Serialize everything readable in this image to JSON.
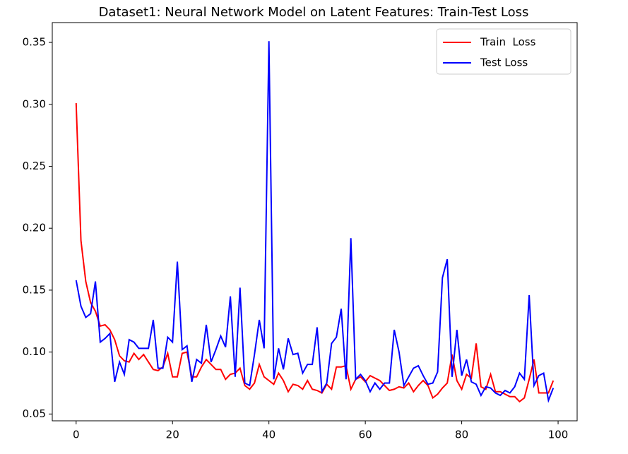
{
  "chart_data": {
    "type": "line",
    "title": "Dataset1: Neural Network Model on Latent Features: Train-Test Loss",
    "x": [
      0,
      1,
      2,
      3,
      4,
      5,
      6,
      7,
      8,
      9,
      10,
      11,
      12,
      13,
      14,
      15,
      16,
      17,
      18,
      19,
      20,
      21,
      22,
      23,
      24,
      25,
      26,
      27,
      28,
      29,
      30,
      31,
      32,
      33,
      34,
      35,
      36,
      37,
      38,
      39,
      40,
      41,
      42,
      43,
      44,
      45,
      46,
      47,
      48,
      49,
      50,
      51,
      52,
      53,
      54,
      55,
      56,
      57,
      58,
      59,
      60,
      61,
      62,
      63,
      64,
      65,
      66,
      67,
      68,
      69,
      70,
      71,
      72,
      73,
      74,
      75,
      76,
      77,
      78,
      79,
      80,
      81,
      82,
      83,
      84,
      85,
      86,
      87,
      88,
      89,
      90,
      91,
      92,
      93,
      94,
      95,
      96,
      97,
      98,
      99
    ],
    "series": [
      {
        "name": "Train  Loss",
        "color": "#ff0000",
        "values": [
          0.301,
          0.19,
          0.157,
          0.14,
          0.133,
          0.121,
          0.122,
          0.118,
          0.11,
          0.097,
          0.093,
          0.092,
          0.099,
          0.094,
          0.098,
          0.092,
          0.086,
          0.085,
          0.088,
          0.099,
          0.08,
          0.08,
          0.099,
          0.1,
          0.08,
          0.08,
          0.088,
          0.094,
          0.09,
          0.086,
          0.086,
          0.078,
          0.082,
          0.083,
          0.087,
          0.073,
          0.07,
          0.075,
          0.09,
          0.08,
          0.077,
          0.074,
          0.083,
          0.077,
          0.068,
          0.074,
          0.073,
          0.07,
          0.077,
          0.07,
          0.069,
          0.067,
          0.074,
          0.07,
          0.088,
          0.088,
          0.089,
          0.07,
          0.078,
          0.08,
          0.076,
          0.081,
          0.079,
          0.077,
          0.073,
          0.069,
          0.07,
          0.072,
          0.071,
          0.075,
          0.068,
          0.073,
          0.077,
          0.073,
          0.063,
          0.066,
          0.071,
          0.075,
          0.098,
          0.077,
          0.07,
          0.082,
          0.079,
          0.107,
          0.072,
          0.07,
          0.082,
          0.068,
          0.068,
          0.066,
          0.064,
          0.064,
          0.06,
          0.063,
          0.078,
          0.094,
          0.067,
          0.067,
          0.067,
          0.077
        ]
      },
      {
        "name": "Test Loss",
        "color": "#0000ff",
        "values": [
          0.158,
          0.137,
          0.128,
          0.131,
          0.157,
          0.108,
          0.111,
          0.115,
          0.076,
          0.092,
          0.082,
          0.11,
          0.108,
          0.103,
          0.103,
          0.103,
          0.126,
          0.087,
          0.087,
          0.112,
          0.108,
          0.173,
          0.102,
          0.105,
          0.076,
          0.094,
          0.091,
          0.122,
          0.092,
          0.102,
          0.113,
          0.104,
          0.145,
          0.08,
          0.152,
          0.075,
          0.073,
          0.098,
          0.126,
          0.103,
          0.351,
          0.078,
          0.103,
          0.086,
          0.111,
          0.098,
          0.099,
          0.083,
          0.09,
          0.09,
          0.12,
          0.068,
          0.075,
          0.107,
          0.112,
          0.135,
          0.078,
          0.192,
          0.078,
          0.082,
          0.077,
          0.068,
          0.075,
          0.07,
          0.075,
          0.075,
          0.118,
          0.1,
          0.073,
          0.08,
          0.087,
          0.089,
          0.081,
          0.074,
          0.075,
          0.084,
          0.16,
          0.175,
          0.08,
          0.118,
          0.081,
          0.094,
          0.076,
          0.074,
          0.065,
          0.072,
          0.071,
          0.067,
          0.065,
          0.069,
          0.067,
          0.072,
          0.083,
          0.078,
          0.146,
          0.073,
          0.081,
          0.083,
          0.061,
          0.071
        ]
      }
    ],
    "xlim": [
      -4.95,
      103.95
    ],
    "xticks": [
      0,
      20,
      40,
      60,
      80,
      100
    ],
    "ylim": [
      0.0445,
      0.366
    ],
    "yticks": [
      0.05,
      {
        "value": 0.1,
        "label": "0.10"
      },
      0.15,
      {
        "value": 0.2,
        "label": "0.20"
      },
      0.25,
      {
        "value": 0.3,
        "label": "0.30"
      },
      0.35
    ],
    "legend": "upper right"
  }
}
